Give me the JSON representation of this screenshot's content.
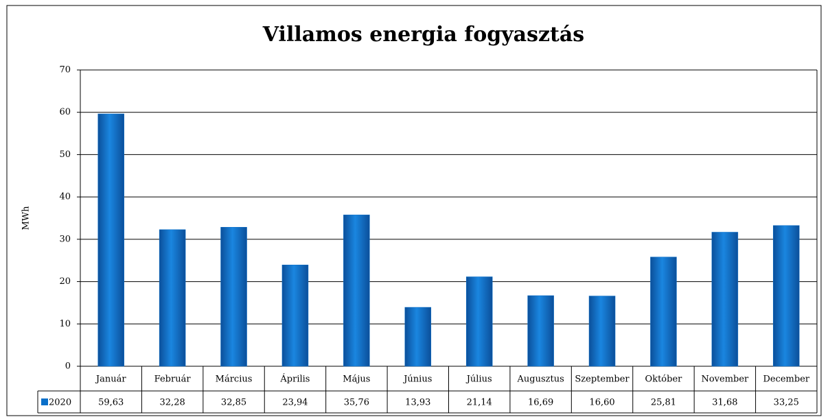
{
  "chart_data": {
    "type": "bar",
    "title": "Villamos energia fogyasztás",
    "y_label": "MWh",
    "categories": [
      "Január",
      "Február",
      "Március",
      "Április",
      "Május",
      "Június",
      "Július",
      "Augusztus",
      "Szeptember",
      "Október",
      "November",
      "December"
    ],
    "series": [
      {
        "name": "2020",
        "color": "#0a6fc9",
        "values": [
          59.63,
          32.28,
          32.85,
          23.94,
          35.76,
          13.93,
          21.14,
          16.69,
          16.6,
          25.81,
          31.68,
          33.25
        ],
        "value_labels": [
          "59,63",
          "32,28",
          "32,85",
          "23,94",
          "35,76",
          "13,93",
          "21,14",
          "16,69",
          "16,60",
          "25,81",
          "31,68",
          "33,25"
        ]
      }
    ],
    "ylim": [
      0,
      70
    ],
    "yticks": [
      0,
      10,
      20,
      30,
      40,
      50,
      60,
      70
    ],
    "grid": true
  }
}
